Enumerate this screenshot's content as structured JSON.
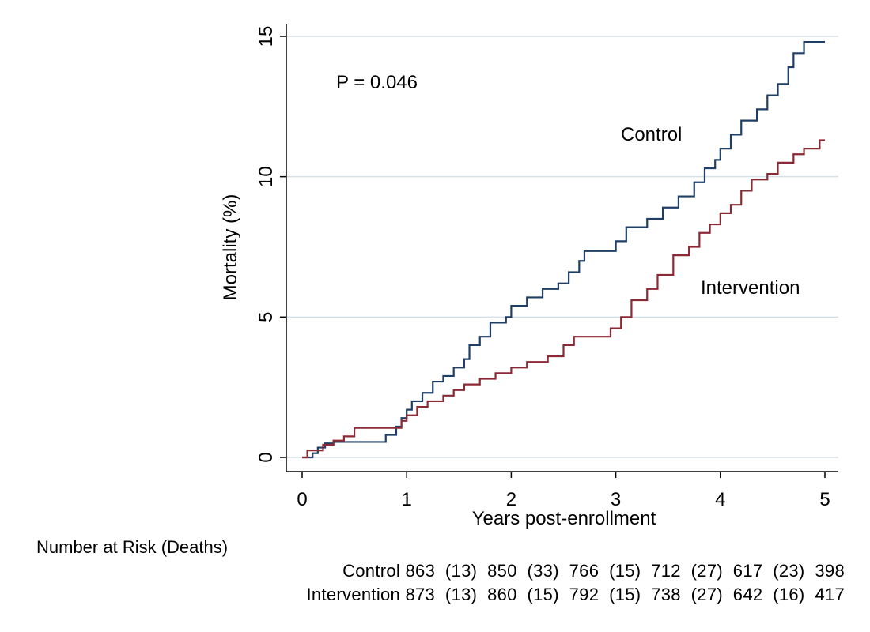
{
  "chart_data": {
    "type": "line",
    "title": "",
    "xlabel": "Years post-enrollment",
    "ylabel": "Mortality (%)",
    "xlim": [
      0,
      5
    ],
    "ylim": [
      0,
      15
    ],
    "x_ticks": [
      "0",
      "1",
      "2",
      "3",
      "4",
      "5"
    ],
    "y_ticks": [
      "0",
      "5",
      "10",
      "15"
    ],
    "grid": "horizontal",
    "annotation": "P = 0.046",
    "series": [
      {
        "name": "Control",
        "color": "#1f3f66",
        "points": [
          [
            0,
            0
          ],
          [
            0.1,
            0.15
          ],
          [
            0.15,
            0.35
          ],
          [
            0.22,
            0.5
          ],
          [
            0.3,
            0.55
          ],
          [
            0.8,
            0.8
          ],
          [
            0.9,
            1.1
          ],
          [
            0.95,
            1.4
          ],
          [
            1.0,
            1.7
          ],
          [
            1.05,
            2.0
          ],
          [
            1.15,
            2.3
          ],
          [
            1.25,
            2.7
          ],
          [
            1.35,
            2.9
          ],
          [
            1.45,
            3.2
          ],
          [
            1.55,
            3.5
          ],
          [
            1.6,
            4.0
          ],
          [
            1.7,
            4.3
          ],
          [
            1.8,
            4.8
          ],
          [
            1.95,
            5.0
          ],
          [
            2.0,
            5.4
          ],
          [
            2.15,
            5.7
          ],
          [
            2.3,
            6.0
          ],
          [
            2.45,
            6.2
          ],
          [
            2.55,
            6.6
          ],
          [
            2.65,
            7.0
          ],
          [
            2.7,
            7.35
          ],
          [
            3.0,
            7.7
          ],
          [
            3.1,
            8.2
          ],
          [
            3.3,
            8.5
          ],
          [
            3.45,
            8.9
          ],
          [
            3.6,
            9.3
          ],
          [
            3.75,
            9.8
          ],
          [
            3.85,
            10.3
          ],
          [
            3.95,
            10.6
          ],
          [
            4.0,
            11.0
          ],
          [
            4.1,
            11.5
          ],
          [
            4.2,
            12.0
          ],
          [
            4.35,
            12.4
          ],
          [
            4.45,
            12.9
          ],
          [
            4.55,
            13.3
          ],
          [
            4.65,
            13.9
          ],
          [
            4.7,
            14.4
          ],
          [
            4.8,
            14.8
          ],
          [
            5.0,
            14.8
          ]
        ]
      },
      {
        "name": "Intervention",
        "color": "#8b2a35",
        "points": [
          [
            0,
            0
          ],
          [
            0.05,
            0.25
          ],
          [
            0.2,
            0.45
          ],
          [
            0.3,
            0.6
          ],
          [
            0.4,
            0.75
          ],
          [
            0.5,
            1.05
          ],
          [
            0.8,
            1.05
          ],
          [
            0.95,
            1.3
          ],
          [
            1.0,
            1.5
          ],
          [
            1.1,
            1.8
          ],
          [
            1.2,
            2.0
          ],
          [
            1.35,
            2.2
          ],
          [
            1.45,
            2.4
          ],
          [
            1.55,
            2.6
          ],
          [
            1.7,
            2.8
          ],
          [
            1.85,
            3.0
          ],
          [
            2.0,
            3.2
          ],
          [
            2.15,
            3.4
          ],
          [
            2.35,
            3.6
          ],
          [
            2.5,
            4.0
          ],
          [
            2.6,
            4.3
          ],
          [
            2.9,
            4.3
          ],
          [
            2.95,
            4.6
          ],
          [
            3.05,
            5.0
          ],
          [
            3.15,
            5.6
          ],
          [
            3.3,
            6.0
          ],
          [
            3.4,
            6.5
          ],
          [
            3.55,
            7.2
          ],
          [
            3.7,
            7.5
          ],
          [
            3.8,
            8.0
          ],
          [
            3.9,
            8.3
          ],
          [
            4.0,
            8.7
          ],
          [
            4.1,
            9.0
          ],
          [
            4.2,
            9.5
          ],
          [
            4.3,
            9.9
          ],
          [
            4.45,
            10.1
          ],
          [
            4.55,
            10.5
          ],
          [
            4.7,
            10.8
          ],
          [
            4.8,
            11.0
          ],
          [
            4.95,
            11.3
          ],
          [
            5.0,
            11.3
          ]
        ]
      }
    ]
  },
  "risk_table": {
    "title": "Number at Risk (Deaths)",
    "rows": [
      {
        "label": "Control",
        "text": "Control 863  (13)  850  (33)  766  (15)  712  (27)  617  (23)  398"
      },
      {
        "label": "Intervention",
        "text": "Intervention 873  (13)  860  (15)  792  (15)  738  (27)  642  (16)  417"
      }
    ]
  }
}
